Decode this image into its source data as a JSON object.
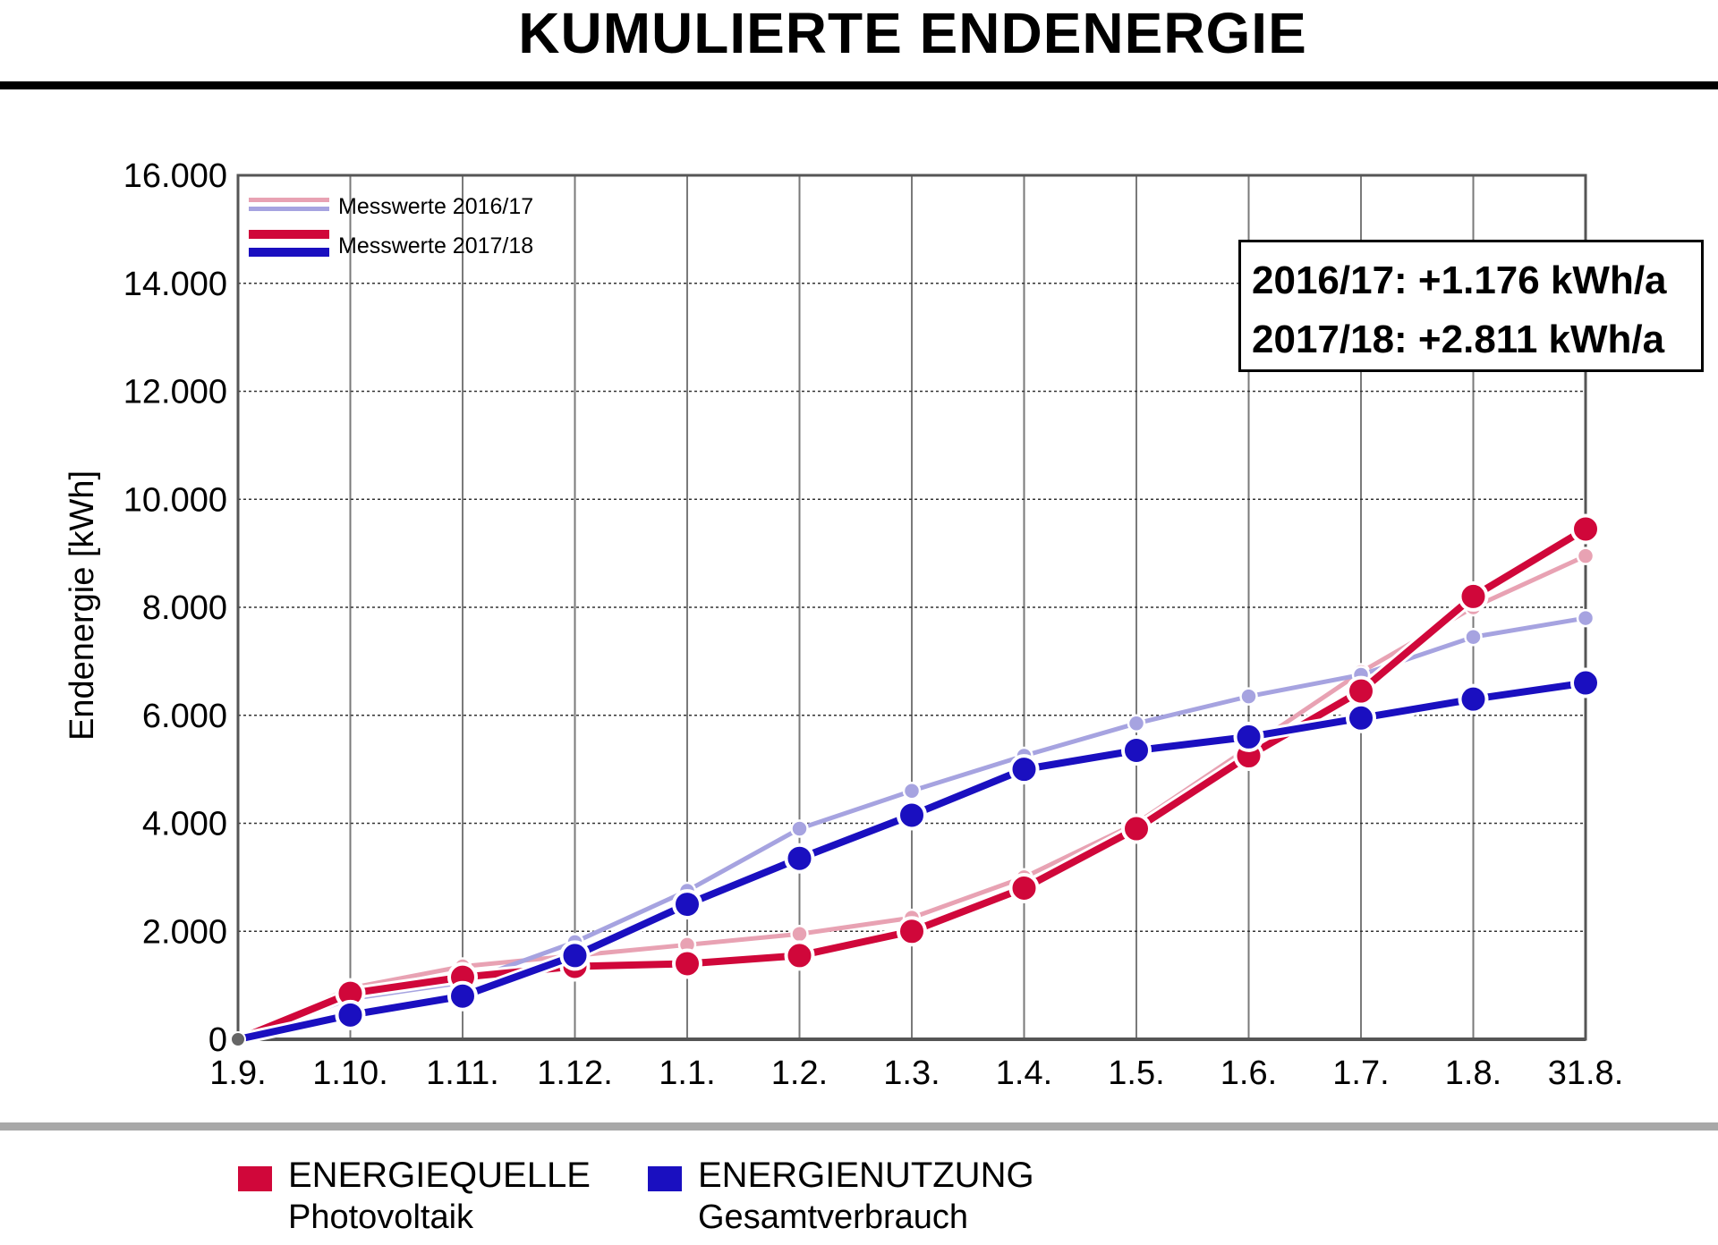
{
  "title": "KUMULIERTE ENDENERGIE",
  "colors": {
    "quelle_2017": "#d0073a",
    "quelle_2016": "#e8a2b3",
    "nutzung_2017": "#1a0fc0",
    "nutzung_2016": "#a6a3e0",
    "grid": "#222222",
    "frame": "#555555"
  },
  "chart_data": {
    "type": "line",
    "ylabel": "Endenergie [kWh]",
    "xlabel": "",
    "ylim": [
      0,
      16000
    ],
    "yticks": [
      "0",
      "2.000",
      "4.000",
      "6.000",
      "8.000",
      "10.000",
      "12.000",
      "14.000",
      "16.000"
    ],
    "categories": [
      "1.9.",
      "1.10.",
      "1.11.",
      "1.12.",
      "1.1.",
      "1.2.",
      "1.3.",
      "1.4.",
      "1.5.",
      "1.6.",
      "1.7.",
      "1.8.",
      "31.8."
    ],
    "grid": true,
    "legend": [
      {
        "label": "Messwerte 2016/17",
        "colors": [
          "#e8a2b3",
          "#a6a3e0"
        ]
      },
      {
        "label": "Messwerte 2017/18",
        "colors": [
          "#d0073a",
          "#1a0fc0"
        ]
      }
    ],
    "legend_position": "top-left",
    "series": [
      {
        "group": "ENERGIEQUELLE",
        "period": "2016/17",
        "color": "#e8a2b3",
        "values": [
          0,
          950,
          1350,
          1550,
          1750,
          1950,
          2250,
          3000,
          4000,
          5400,
          6800,
          8000,
          8950
        ]
      },
      {
        "group": "ENERGIENUTZUNG",
        "period": "2016/17",
        "color": "#a6a3e0",
        "values": [
          0,
          750,
          1050,
          1800,
          2750,
          3900,
          4600,
          5250,
          5850,
          6350,
          6750,
          7450,
          7800
        ]
      },
      {
        "group": "ENERGIEQUELLE",
        "period": "2017/18",
        "color": "#d0073a",
        "values": [
          0,
          850,
          1150,
          1350,
          1400,
          1550,
          2000,
          2800,
          3900,
          5250,
          6450,
          8200,
          9450
        ]
      },
      {
        "group": "ENERGIENUTZUNG",
        "period": "2017/18",
        "color": "#1a0fc0",
        "values": [
          0,
          450,
          800,
          1550,
          2500,
          3350,
          4150,
          5000,
          5350,
          5600,
          5950,
          6300,
          6600
        ]
      }
    ]
  },
  "stats": {
    "line1": "2016/17: +1.176 kWh/a",
    "line2": "2017/18: +2.811 kWh/a"
  },
  "bottom_legend": [
    {
      "label": "ENERGIEQUELLE",
      "sub": "Photovoltaik",
      "color": "#d0073a"
    },
    {
      "label": "ENERGIENUTZUNG",
      "sub": "Gesamtverbrauch",
      "color": "#1a0fc0"
    }
  ]
}
